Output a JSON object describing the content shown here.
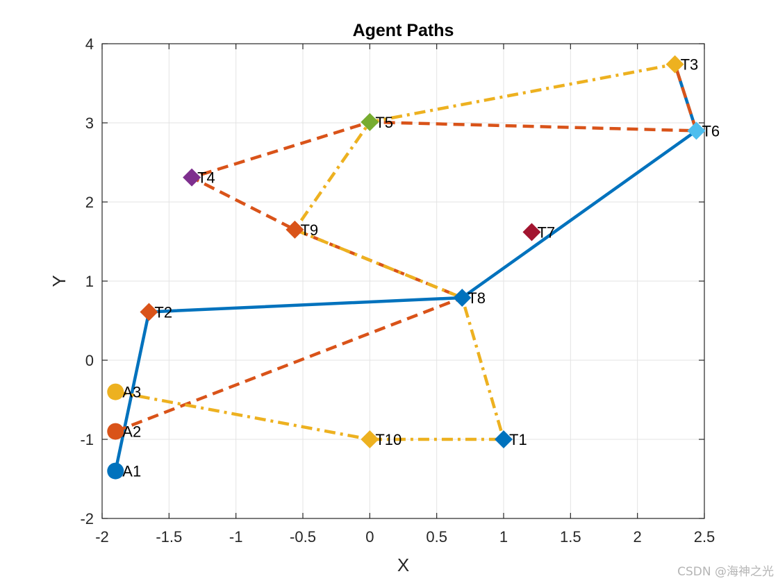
{
  "watermark": "CSDN @海神之光",
  "chart_data": {
    "type": "line",
    "title": "Agent Paths",
    "xlabel": "X",
    "ylabel": "Y",
    "xlim": [
      -2,
      2.5
    ],
    "ylim": [
      -2,
      4
    ],
    "xticks": [
      -2,
      -1.5,
      -1,
      -0.5,
      0,
      0.5,
      1,
      1.5,
      2,
      2.5
    ],
    "xtick_labels": [
      "-2",
      "-1.5",
      "-1",
      "-0.5",
      "0",
      "0.5",
      "1",
      "1.5",
      "2",
      "2.5"
    ],
    "yticks": [
      -2,
      -1,
      0,
      1,
      2,
      3,
      4
    ],
    "ytick_labels": [
      "-2",
      "-1",
      "0",
      "1",
      "2",
      "3",
      "4"
    ],
    "grid": true,
    "agents": [
      {
        "name": "A1",
        "x": -1.9,
        "y": -1.4,
        "color": "#0072BD"
      },
      {
        "name": "A2",
        "x": -1.9,
        "y": -0.9,
        "color": "#D95319"
      },
      {
        "name": "A3",
        "x": -1.9,
        "y": -0.4,
        "color": "#EDB120"
      }
    ],
    "targets": [
      {
        "name": "T1",
        "x": 1.0,
        "y": -1.0,
        "color": "#0072BD"
      },
      {
        "name": "T2",
        "x": -1.65,
        "y": 0.61,
        "color": "#D95319"
      },
      {
        "name": "T3",
        "x": 2.28,
        "y": 3.74,
        "color": "#EDB120"
      },
      {
        "name": "T4",
        "x": -1.33,
        "y": 2.31,
        "color": "#7E2F8E"
      },
      {
        "name": "T5",
        "x": 0.0,
        "y": 3.01,
        "color": "#77AC30"
      },
      {
        "name": "T6",
        "x": 2.44,
        "y": 2.9,
        "color": "#4DBEEE"
      },
      {
        "name": "T7",
        "x": 1.21,
        "y": 1.62,
        "color": "#A2142F"
      },
      {
        "name": "T8",
        "x": 0.69,
        "y": 0.79,
        "color": "#0072BD"
      },
      {
        "name": "T9",
        "x": -0.56,
        "y": 1.65,
        "color": "#D95319"
      },
      {
        "name": "T10",
        "x": 0.0,
        "y": -1.0,
        "color": "#EDB120"
      }
    ],
    "series": [
      {
        "name": "A1 path",
        "style": "solid",
        "color": "#0072BD",
        "x": [
          -1.9,
          -1.65,
          0.69,
          2.44,
          2.28
        ],
        "y": [
          -1.4,
          0.61,
          0.79,
          2.9,
          3.74
        ]
      },
      {
        "name": "A2 path",
        "style": "dashed",
        "color": "#D95319",
        "x": [
          -1.9,
          0.69,
          -0.56,
          -1.33,
          0.0,
          2.44,
          2.28
        ],
        "y": [
          -0.9,
          0.79,
          1.65,
          2.31,
          3.01,
          2.9,
          3.74
        ]
      },
      {
        "name": "A3 path",
        "style": "dashdot",
        "color": "#EDB120",
        "x": [
          -1.9,
          0.0,
          1.0,
          0.69,
          -0.56,
          0.0,
          2.28
        ],
        "y": [
          -0.4,
          -1.0,
          -1.0,
          0.79,
          1.65,
          3.01,
          3.74
        ]
      }
    ]
  }
}
